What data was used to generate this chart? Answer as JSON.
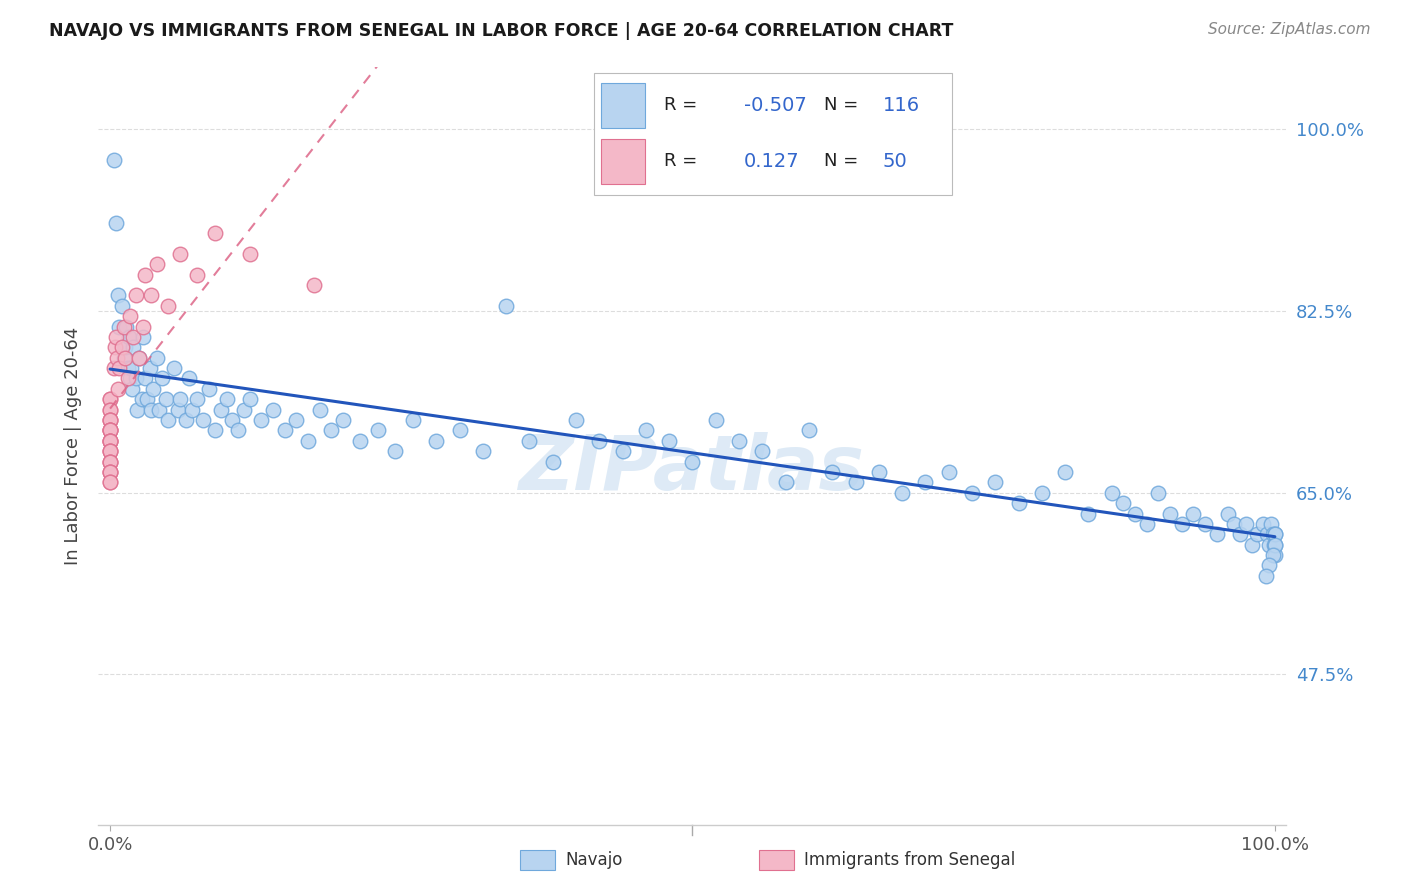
{
  "title": "NAVAJO VS IMMIGRANTS FROM SENEGAL IN LABOR FORCE | AGE 20-64 CORRELATION CHART",
  "source": "Source: ZipAtlas.com",
  "ylabel": "In Labor Force | Age 20-64",
  "y_tick_labels": [
    "47.5%",
    "65.0%",
    "82.5%",
    "100.0%"
  ],
  "y_tick_values": [
    0.475,
    0.65,
    0.825,
    1.0
  ],
  "xlim": [
    -0.01,
    1.01
  ],
  "ylim": [
    0.33,
    1.06
  ],
  "legend_navajo_label": "Navajo",
  "legend_senegal_label": "Immigrants from Senegal",
  "navajo_R": "-0.507",
  "navajo_N": "116",
  "senegal_R": "0.127",
  "senegal_N": "50",
  "navajo_color": "#b8d4f0",
  "navajo_edge_color": "#6fa8dc",
  "senegal_color": "#f4b8c8",
  "senegal_edge_color": "#e07090",
  "navajo_line_color": "#2255bb",
  "senegal_line_color": "#dd6688",
  "legend_text_color": "#3366cc",
  "watermark_color": "#c8ddf0",
  "grid_color": "#dddddd",
  "navajo_x": [
    0.003,
    0.005,
    0.007,
    0.008,
    0.01,
    0.012,
    0.013,
    0.014,
    0.015,
    0.016,
    0.017,
    0.018,
    0.019,
    0.02,
    0.022,
    0.023,
    0.025,
    0.027,
    0.028,
    0.03,
    0.032,
    0.034,
    0.035,
    0.037,
    0.04,
    0.042,
    0.045,
    0.048,
    0.05,
    0.055,
    0.058,
    0.06,
    0.065,
    0.068,
    0.07,
    0.075,
    0.08,
    0.085,
    0.09,
    0.095,
    0.1,
    0.105,
    0.11,
    0.115,
    0.12,
    0.13,
    0.14,
    0.15,
    0.16,
    0.17,
    0.18,
    0.19,
    0.2,
    0.215,
    0.23,
    0.245,
    0.26,
    0.28,
    0.3,
    0.32,
    0.34,
    0.36,
    0.38,
    0.4,
    0.42,
    0.44,
    0.46,
    0.48,
    0.5,
    0.52,
    0.54,
    0.56,
    0.58,
    0.6,
    0.62,
    0.64,
    0.66,
    0.68,
    0.7,
    0.72,
    0.74,
    0.76,
    0.78,
    0.8,
    0.82,
    0.84,
    0.86,
    0.87,
    0.88,
    0.89,
    0.9,
    0.91,
    0.92,
    0.93,
    0.94,
    0.95,
    0.96,
    0.965,
    0.97,
    0.975,
    0.98,
    0.985,
    0.99,
    0.993,
    0.995,
    0.997,
    0.998,
    0.999,
    1.0,
    1.0,
    1.0,
    1.0,
    1.0,
    0.998,
    0.995,
    0.992
  ],
  "navajo_y": [
    0.97,
    0.91,
    0.84,
    0.81,
    0.83,
    0.78,
    0.79,
    0.81,
    0.77,
    0.8,
    0.76,
    0.77,
    0.75,
    0.79,
    0.76,
    0.73,
    0.78,
    0.74,
    0.8,
    0.76,
    0.74,
    0.77,
    0.73,
    0.75,
    0.78,
    0.73,
    0.76,
    0.74,
    0.72,
    0.77,
    0.73,
    0.74,
    0.72,
    0.76,
    0.73,
    0.74,
    0.72,
    0.75,
    0.71,
    0.73,
    0.74,
    0.72,
    0.71,
    0.73,
    0.74,
    0.72,
    0.73,
    0.71,
    0.72,
    0.7,
    0.73,
    0.71,
    0.72,
    0.7,
    0.71,
    0.69,
    0.72,
    0.7,
    0.71,
    0.69,
    0.83,
    0.7,
    0.68,
    0.72,
    0.7,
    0.69,
    0.71,
    0.7,
    0.68,
    0.72,
    0.7,
    0.69,
    0.66,
    0.71,
    0.67,
    0.66,
    0.67,
    0.65,
    0.66,
    0.67,
    0.65,
    0.66,
    0.64,
    0.65,
    0.67,
    0.63,
    0.65,
    0.64,
    0.63,
    0.62,
    0.65,
    0.63,
    0.62,
    0.63,
    0.62,
    0.61,
    0.63,
    0.62,
    0.61,
    0.62,
    0.6,
    0.61,
    0.62,
    0.61,
    0.6,
    0.62,
    0.61,
    0.6,
    0.61,
    0.6,
    0.59,
    0.61,
    0.6,
    0.59,
    0.58,
    0.57
  ],
  "senegal_x": [
    0.0,
    0.0,
    0.0,
    0.0,
    0.0,
    0.0,
    0.0,
    0.0,
    0.0,
    0.0,
    0.0,
    0.0,
    0.0,
    0.0,
    0.0,
    0.0,
    0.0,
    0.0,
    0.0,
    0.0,
    0.0,
    0.0,
    0.0,
    0.0,
    0.0,
    0.0,
    0.003,
    0.004,
    0.005,
    0.006,
    0.007,
    0.008,
    0.01,
    0.012,
    0.013,
    0.015,
    0.017,
    0.02,
    0.022,
    0.025,
    0.028,
    0.03,
    0.035,
    0.04,
    0.05,
    0.06,
    0.075,
    0.09,
    0.12,
    0.175
  ],
  "senegal_y": [
    0.74,
    0.74,
    0.73,
    0.73,
    0.72,
    0.72,
    0.72,
    0.71,
    0.71,
    0.71,
    0.71,
    0.7,
    0.7,
    0.7,
    0.7,
    0.69,
    0.69,
    0.69,
    0.68,
    0.68,
    0.68,
    0.67,
    0.67,
    0.67,
    0.66,
    0.66,
    0.77,
    0.79,
    0.8,
    0.78,
    0.75,
    0.77,
    0.79,
    0.81,
    0.78,
    0.76,
    0.82,
    0.8,
    0.84,
    0.78,
    0.81,
    0.86,
    0.84,
    0.87,
    0.83,
    0.88,
    0.86,
    0.9,
    0.88,
    0.85
  ]
}
